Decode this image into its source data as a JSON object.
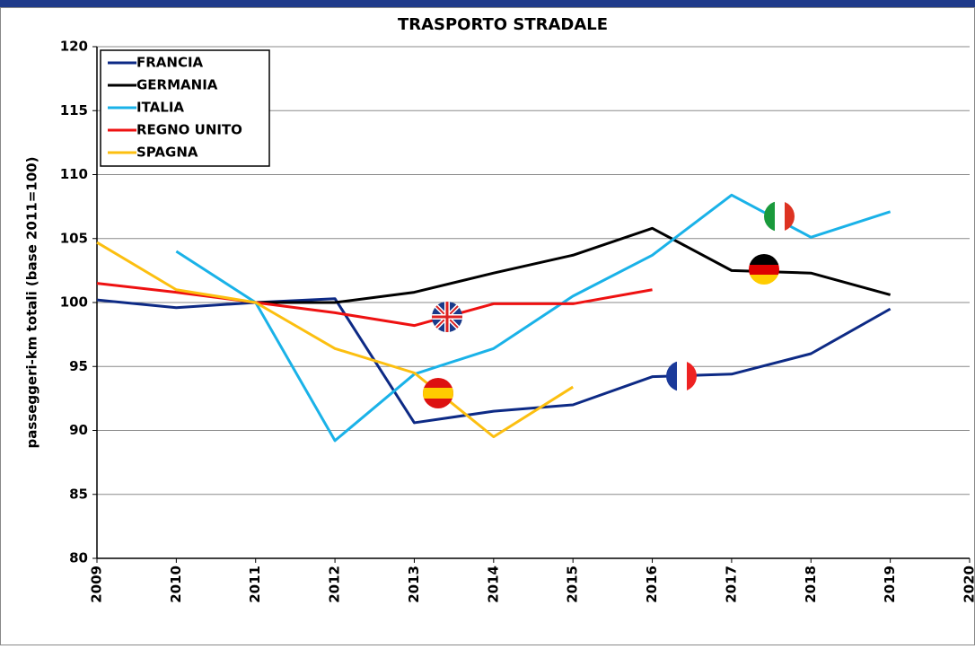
{
  "chart_data": {
    "type": "line",
    "title": "TRASPORTO STRADALE",
    "y_label": "passeggeri-km totali (base 2011=100)",
    "x": [
      2009,
      2010,
      2011,
      2012,
      2013,
      2014,
      2015,
      2016,
      2017,
      2018,
      2019
    ],
    "xlim": [
      2009,
      2020
    ],
    "xticks": [
      2009,
      2010,
      2011,
      2012,
      2013,
      2014,
      2015,
      2016,
      2017,
      2018,
      2019,
      2020
    ],
    "ylim": [
      80,
      120
    ],
    "yticks": [
      80,
      85,
      90,
      95,
      100,
      105,
      110,
      115,
      120
    ],
    "grid": true,
    "legend": "top-left",
    "series": [
      {
        "name": "FRANCIA",
        "color": "#0d2a85",
        "values": [
          100.2,
          99.6,
          100,
          100.3,
          90.6,
          91.5,
          92.0,
          94.2,
          94.4,
          96.0,
          99.5
        ]
      },
      {
        "name": "GERMANIA",
        "color": "#000000",
        "values": [
          null,
          null,
          100,
          100,
          100.8,
          102.3,
          103.7,
          105.8,
          102.5,
          102.3,
          100.6
        ]
      },
      {
        "name": "ITALIA",
        "color": "#1ab2e8",
        "values": [
          null,
          104.0,
          100,
          89.2,
          94.4,
          96.4,
          100.5,
          103.7,
          108.4,
          105.1,
          107.1
        ]
      },
      {
        "name": "REGNO UNITO",
        "color": "#ee1111",
        "values": [
          101.5,
          100.8,
          100,
          99.2,
          98.2,
          99.9,
          99.9,
          101.0,
          null,
          null,
          null
        ]
      },
      {
        "name": "SPAGNA",
        "color": "#fcbf10",
        "values": [
          104.7,
          101.0,
          100,
          96.4,
          94.5,
          89.5,
          93.4,
          null,
          null,
          null,
          null
        ]
      }
    ]
  }
}
